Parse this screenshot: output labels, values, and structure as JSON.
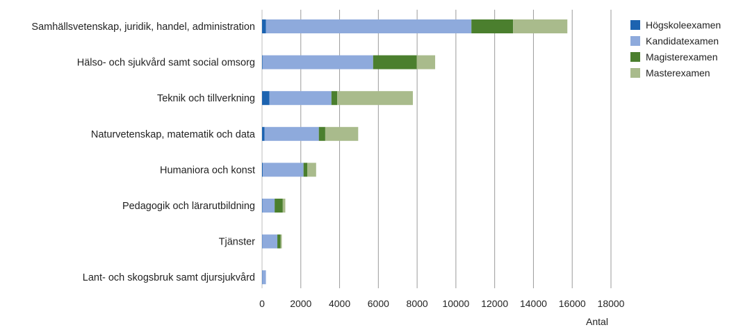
{
  "chart_data": {
    "type": "bar",
    "orientation": "horizontal",
    "stacked": true,
    "categories": [
      "Samhällsvetenskap, juridik, handel, administration",
      "Hälso- och sjukvård samt social omsorg",
      "Teknik och tillverkning",
      "Naturvetenskap, matematik och data",
      "Humaniora och konst",
      "Pedagogik och lärarutbildning",
      "Tjänster",
      "Lant- och skogsbruk samt djursjukvård"
    ],
    "series": [
      {
        "name": "Högskoleexamen",
        "color": "#1c63b0",
        "values": [
          200,
          30,
          380,
          130,
          40,
          20,
          10,
          10
        ]
      },
      {
        "name": "Kandidatexamen",
        "color": "#8eaadc",
        "values": [
          10600,
          5700,
          3200,
          2800,
          2100,
          630,
          780,
          190
        ]
      },
      {
        "name": "Magisterexamen",
        "color": "#4b7f2e",
        "values": [
          2150,
          2250,
          300,
          330,
          200,
          420,
          170,
          0
        ]
      },
      {
        "name": "Masterexamen",
        "color": "#a9bb8c",
        "values": [
          2800,
          950,
          3900,
          1700,
          450,
          130,
          60,
          0
        ]
      }
    ],
    "xlim": [
      0,
      18000
    ],
    "xticks": [
      "0",
      "2000",
      "4000",
      "6000",
      "8000",
      "10000",
      "12000",
      "14000",
      "16000",
      "18000"
    ],
    "xlabel": "Antal",
    "ylabel": "",
    "grid": true,
    "legend_position": "right"
  }
}
